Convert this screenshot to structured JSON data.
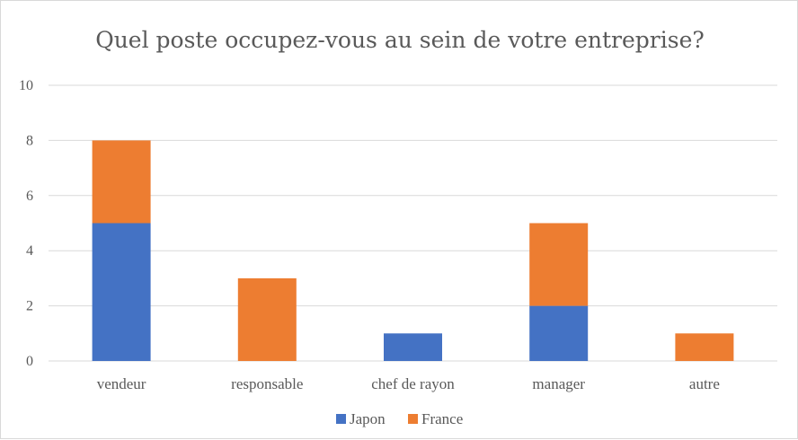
{
  "chart_data": {
    "type": "bar",
    "stacked": true,
    "title": "Quel poste occupez-vous au sein de votre entreprise?",
    "categories": [
      "vendeur",
      "responsable",
      "chef de rayon",
      "manager",
      "autre"
    ],
    "series": [
      {
        "name": "Japon",
        "values": [
          5,
          0,
          1,
          2,
          0
        ],
        "color": "#4472c4"
      },
      {
        "name": "France",
        "values": [
          3,
          3,
          0,
          3,
          1
        ],
        "color": "#ed7d31"
      }
    ],
    "yticks": [
      "0",
      "2",
      "4",
      "6",
      "8",
      "10"
    ],
    "ylim": [
      0,
      10
    ],
    "grid": true,
    "legend_position": "bottom"
  }
}
